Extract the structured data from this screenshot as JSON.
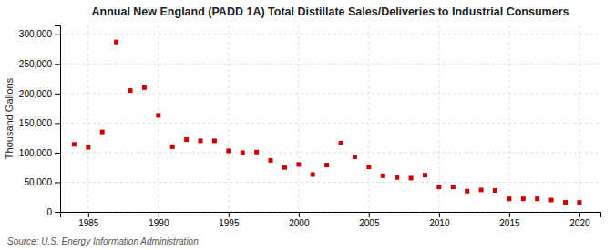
{
  "chart_data": {
    "type": "scatter",
    "title": "Annual New England (PADD 1A) Total Distillate Sales/Deliveries to Industrial Consumers",
    "ylabel": "Thousand Gallons",
    "source": "Source: U.S. Energy Information Administration",
    "x": [
      1984,
      1985,
      1986,
      1987,
      1988,
      1989,
      1990,
      1991,
      1992,
      1993,
      1994,
      1995,
      1996,
      1997,
      1998,
      1999,
      2000,
      2001,
      2002,
      2003,
      2004,
      2005,
      2006,
      2007,
      2008,
      2009,
      2010,
      2011,
      2012,
      2013,
      2014,
      2015,
      2016,
      2017,
      2018,
      2019,
      2020
    ],
    "values": [
      114000,
      109000,
      135000,
      287000,
      205000,
      210000,
      163000,
      110000,
      122000,
      120000,
      120000,
      103000,
      100000,
      101000,
      87000,
      75000,
      80000,
      63000,
      79000,
      116000,
      93000,
      76000,
      61000,
      58000,
      57000,
      62000,
      42000,
      42000,
      35000,
      37000,
      36000,
      22000,
      22000,
      22000,
      20000,
      16000,
      16000
    ],
    "color": "#cc0000",
    "marker": "square",
    "xlim": [
      1983,
      2021.5
    ],
    "ylim": [
      0,
      315000
    ],
    "xticks": [
      1985,
      1990,
      1995,
      2000,
      2005,
      2010,
      2015,
      2020
    ],
    "yticks": [
      0,
      {
        "value": 50000,
        "label": "50,000"
      },
      {
        "value": 100000,
        "label": "100,000"
      },
      {
        "value": 150000,
        "label": "150,000"
      },
      {
        "value": 200000,
        "label": "200,000"
      },
      {
        "value": 250000,
        "label": "250,000"
      },
      {
        "value": 300000,
        "label": "300,000"
      }
    ],
    "grid": true
  }
}
